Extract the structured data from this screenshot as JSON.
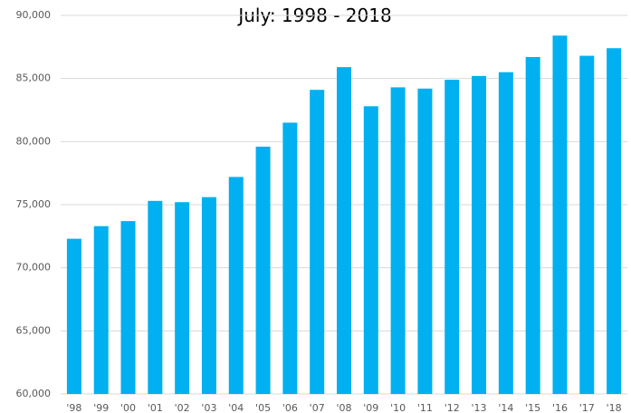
{
  "chart_data": {
    "type": "bar",
    "title": "July:  1998 - 2018",
    "categories": [
      "'98",
      "'99",
      "'00",
      "'01",
      "'02",
      "'03",
      "'04",
      "'05",
      "'06",
      "'07",
      "'08",
      "'09",
      "'10",
      "'11",
      "'12",
      "'13",
      "'14",
      "'15",
      "'16",
      "'17",
      "'18"
    ],
    "values": [
      72300,
      73300,
      73700,
      75300,
      75200,
      75600,
      77200,
      79600,
      81500,
      84100,
      85900,
      82800,
      84300,
      84200,
      84900,
      85200,
      85500,
      86700,
      88400,
      86800,
      87400
    ],
    "color": "#00b0f0",
    "ylim": [
      60000,
      90000
    ],
    "yticks": [
      {
        "value": 60000,
        "label": "60,000"
      },
      {
        "value": 65000,
        "label": "65,000"
      },
      {
        "value": 70000,
        "label": "70,000"
      },
      {
        "value": 75000,
        "label": "75,000"
      },
      {
        "value": 80000,
        "label": "80,000"
      },
      {
        "value": 85000,
        "label": "85,000"
      },
      {
        "value": 90000,
        "label": "90,000"
      }
    ],
    "grid": true
  }
}
